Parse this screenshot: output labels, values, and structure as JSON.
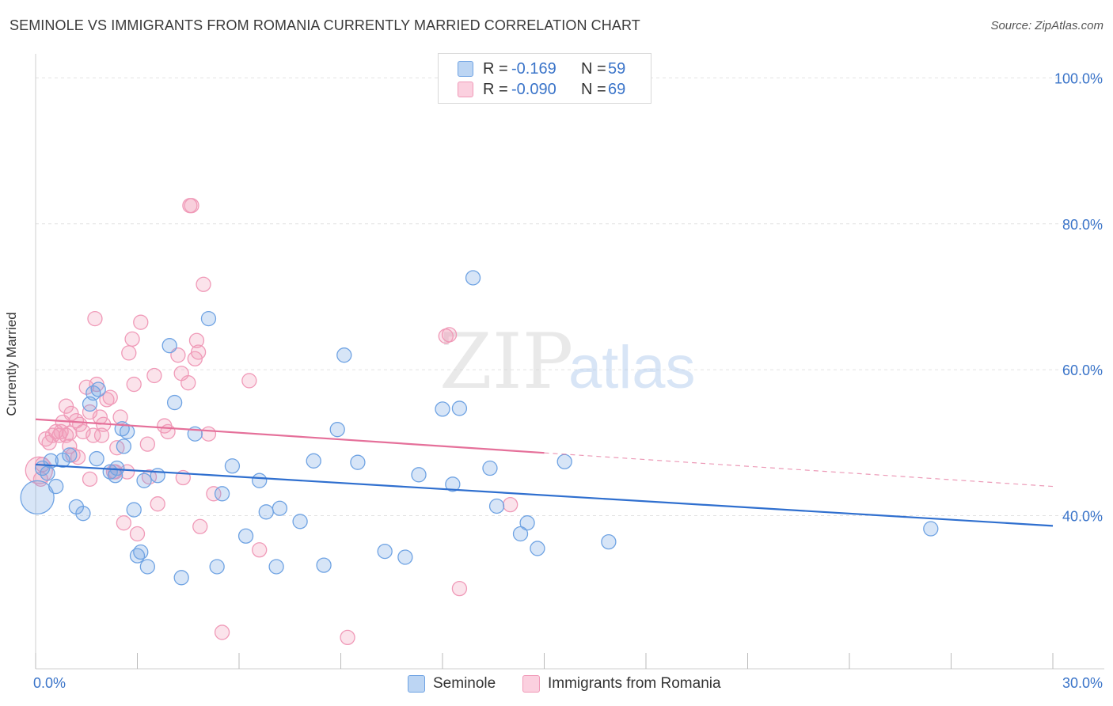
{
  "title": "SEMINOLE VS IMMIGRANTS FROM ROMANIA CURRENTLY MARRIED CORRELATION CHART",
  "source": "Source: ZipAtlas.com",
  "watermark": {
    "zip": "ZIP",
    "atlas": "atlas"
  },
  "legend": {
    "r_label": "R =",
    "n_label": "N =",
    "rows": [
      {
        "r": "-0.169",
        "n": "59"
      },
      {
        "r": "-0.090",
        "n": "69"
      }
    ]
  },
  "chart_data": {
    "type": "scatter",
    "title": "SEMINOLE VS IMMIGRANTS FROM ROMANIA CURRENTLY MARRIED CORRELATION CHART",
    "xlabel": "",
    "ylabel": "Currently Married",
    "xlim": [
      0,
      30
    ],
    "ylim": [
      19,
      102
    ],
    "x_tick_labels": [
      "0.0%",
      "30.0%"
    ],
    "y_ticks": [
      40,
      60,
      80,
      100
    ],
    "y_tick_labels": [
      "40.0%",
      "60.0%",
      "80.0%",
      "100.0%"
    ],
    "grid": true,
    "legend_position": "top-center",
    "colors": {
      "seminole": "#6fa3e3",
      "romania": "#f09ab8",
      "seminole_line": "#2f6fcf",
      "romania_line": "#e5709a",
      "axis_text": "#3a74c9"
    },
    "series": [
      {
        "name": "Seminole",
        "r": -0.169,
        "n": 59,
        "trend": {
          "x": [
            0,
            30
          ],
          "y": [
            47.0,
            38.6
          ]
        },
        "points": [
          [
            0.05,
            42.5,
            3
          ],
          [
            0.2,
            46.5,
            1
          ],
          [
            0.35,
            45.8,
            1
          ],
          [
            0.45,
            47.5,
            1
          ],
          [
            0.6,
            44.0,
            1
          ],
          [
            0.8,
            47.6,
            1
          ],
          [
            1.0,
            48.3,
            1
          ],
          [
            1.2,
            41.2,
            1
          ],
          [
            1.4,
            40.3,
            1
          ],
          [
            1.6,
            55.3,
            1
          ],
          [
            1.7,
            56.8,
            1
          ],
          [
            1.85,
            57.3,
            1
          ],
          [
            1.8,
            47.8,
            1
          ],
          [
            2.2,
            46.0,
            1
          ],
          [
            2.35,
            45.5,
            1
          ],
          [
            2.4,
            46.5,
            1
          ],
          [
            2.55,
            51.9,
            1
          ],
          [
            2.6,
            49.5,
            1
          ],
          [
            2.7,
            51.5,
            1
          ],
          [
            2.9,
            40.8,
            1
          ],
          [
            3.0,
            34.5,
            1
          ],
          [
            3.1,
            35.0,
            1
          ],
          [
            3.2,
            44.8,
            1
          ],
          [
            3.3,
            33.0,
            1
          ],
          [
            3.6,
            45.5,
            1
          ],
          [
            3.95,
            63.3,
            1
          ],
          [
            4.1,
            55.5,
            1
          ],
          [
            4.3,
            31.5,
            1
          ],
          [
            4.7,
            51.2,
            1
          ],
          [
            5.1,
            67.0,
            1
          ],
          [
            5.35,
            33.0,
            1
          ],
          [
            5.5,
            43.0,
            1
          ],
          [
            5.8,
            46.8,
            1
          ],
          [
            6.2,
            37.2,
            1
          ],
          [
            6.6,
            44.8,
            1
          ],
          [
            6.8,
            40.5,
            1
          ],
          [
            7.1,
            33.0,
            1
          ],
          [
            7.2,
            41.0,
            1
          ],
          [
            7.8,
            39.2,
            1
          ],
          [
            8.2,
            47.5,
            1
          ],
          [
            8.5,
            33.2,
            1
          ],
          [
            8.9,
            51.8,
            1
          ],
          [
            9.1,
            62.0,
            1
          ],
          [
            9.5,
            47.3,
            1
          ],
          [
            10.3,
            35.1,
            1
          ],
          [
            10.9,
            34.3,
            1
          ],
          [
            11.3,
            45.6,
            1
          ],
          [
            12.0,
            54.6,
            1
          ],
          [
            12.3,
            44.3,
            1
          ],
          [
            12.5,
            54.7,
            1
          ],
          [
            12.9,
            72.6,
            1
          ],
          [
            13.4,
            46.5,
            1
          ],
          [
            13.6,
            41.3,
            1
          ],
          [
            14.3,
            37.5,
            1
          ],
          [
            14.5,
            39.0,
            1
          ],
          [
            14.8,
            35.5,
            1
          ],
          [
            15.6,
            47.4,
            1
          ],
          [
            16.9,
            36.4,
            1
          ],
          [
            26.4,
            38.2,
            1
          ]
        ]
      },
      {
        "name": "Immigrants from Romania",
        "r": -0.09,
        "n": 69,
        "trend": {
          "x": [
            0,
            30
          ],
          "y": [
            53.2,
            44.0
          ]
        },
        "trend_solid_until_x": 15,
        "points": [
          [
            0.1,
            46.2,
            2
          ],
          [
            0.2,
            47.0,
            1
          ],
          [
            0.3,
            50.5,
            1
          ],
          [
            0.4,
            50.0,
            1
          ],
          [
            0.5,
            51.0,
            1
          ],
          [
            0.6,
            51.5,
            1
          ],
          [
            0.7,
            51.0,
            1
          ],
          [
            0.75,
            51.5,
            1
          ],
          [
            0.8,
            52.8,
            1
          ],
          [
            0.9,
            51.0,
            1
          ],
          [
            0.9,
            55.0,
            1
          ],
          [
            1.0,
            49.5,
            1
          ],
          [
            1.05,
            54.0,
            1
          ],
          [
            1.1,
            48.3,
            1
          ],
          [
            1.2,
            53.0,
            1
          ],
          [
            1.3,
            52.5,
            1
          ],
          [
            1.25,
            48.0,
            1
          ],
          [
            1.4,
            51.5,
            1
          ],
          [
            1.5,
            57.6,
            1
          ],
          [
            1.6,
            54.2,
            1
          ],
          [
            1.6,
            45.0,
            1
          ],
          [
            1.7,
            51.0,
            1
          ],
          [
            1.75,
            67.0,
            1
          ],
          [
            1.8,
            58.0,
            1
          ],
          [
            1.9,
            53.5,
            1
          ],
          [
            1.95,
            51.0,
            1
          ],
          [
            2.0,
            52.5,
            1
          ],
          [
            2.1,
            55.9,
            1
          ],
          [
            2.2,
            56.2,
            1
          ],
          [
            2.3,
            46.0,
            1
          ],
          [
            2.35,
            46.0,
            1
          ],
          [
            2.4,
            49.3,
            1
          ],
          [
            2.5,
            53.5,
            1
          ],
          [
            2.6,
            39.0,
            1
          ],
          [
            2.7,
            46.0,
            1
          ],
          [
            2.75,
            62.3,
            1
          ],
          [
            2.85,
            64.2,
            1
          ],
          [
            2.9,
            58.0,
            1
          ],
          [
            3.0,
            37.5,
            1
          ],
          [
            3.1,
            66.5,
            1
          ],
          [
            3.3,
            49.8,
            1
          ],
          [
            3.35,
            45.3,
            1
          ],
          [
            3.5,
            59.2,
            1
          ],
          [
            3.6,
            41.6,
            1
          ],
          [
            3.8,
            52.3,
            1
          ],
          [
            3.9,
            51.5,
            1
          ],
          [
            4.2,
            62.0,
            1
          ],
          [
            4.3,
            59.5,
            1
          ],
          [
            4.35,
            45.2,
            1
          ],
          [
            4.5,
            58.2,
            1
          ],
          [
            4.55,
            82.5,
            1
          ],
          [
            4.6,
            82.5,
            1
          ],
          [
            4.7,
            61.5,
            1
          ],
          [
            4.75,
            64.0,
            1
          ],
          [
            4.8,
            62.4,
            1
          ],
          [
            4.85,
            38.5,
            1
          ],
          [
            4.95,
            71.7,
            1
          ],
          [
            5.1,
            51.2,
            1
          ],
          [
            5.25,
            43.0,
            1
          ],
          [
            5.5,
            24.0,
            1
          ],
          [
            6.3,
            58.5,
            1
          ],
          [
            6.6,
            35.3,
            1
          ],
          [
            9.2,
            23.3,
            1
          ],
          [
            12.1,
            64.6,
            1
          ],
          [
            12.2,
            64.8,
            1
          ],
          [
            12.5,
            30.0,
            1
          ],
          [
            14.0,
            41.5,
            1
          ],
          [
            0.15,
            45.0,
            1
          ],
          [
            1.0,
            51.3,
            1
          ]
        ]
      }
    ]
  }
}
